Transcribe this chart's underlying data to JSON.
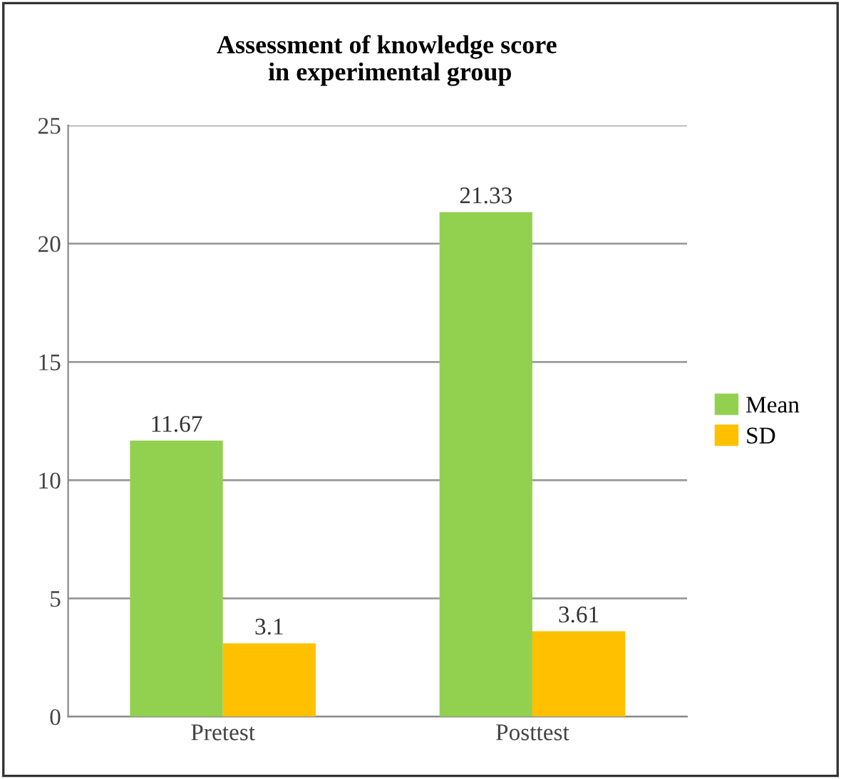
{
  "chart_data": {
    "type": "bar",
    "title": "Assessment of knowledge score\n in experimental group",
    "categories": [
      "Pretest",
      "Posttest"
    ],
    "series": [
      {
        "name": "Mean",
        "color": "#92d050",
        "values": [
          11.67,
          21.33
        ]
      },
      {
        "name": "SD",
        "color": "#ffc000",
        "values": [
          3.1,
          3.61
        ]
      }
    ],
    "ylim": [
      0,
      25
    ],
    "yticks": [
      0,
      5,
      10,
      15,
      20,
      25
    ],
    "grid": "y",
    "legend": "right",
    "data_labels": true
  }
}
